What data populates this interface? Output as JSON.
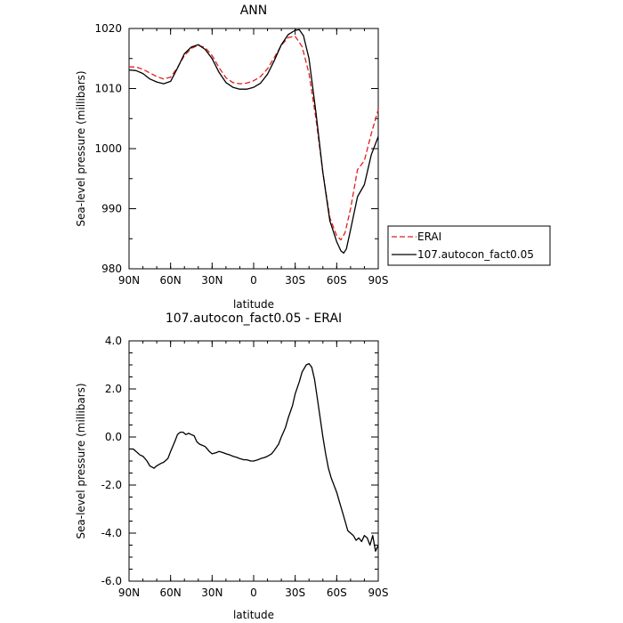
{
  "chart_data": [
    {
      "type": "line",
      "title": "ANN",
      "xlabel": "latitude",
      "ylabel": "Sea-level pressure (millibars)",
      "xlim": [
        90,
        -90
      ],
      "ylim": [
        980,
        1020
      ],
      "x_ticks": [
        90,
        60,
        30,
        0,
        -30,
        -60,
        -90
      ],
      "x_tick_labels": [
        "90N",
        "60N",
        "30N",
        "0",
        "30S",
        "60S",
        "90S"
      ],
      "y_ticks": [
        980,
        990,
        1000,
        1010,
        1020
      ],
      "y_tick_labels": [
        "980",
        "990",
        "1000",
        "1010",
        "1020"
      ],
      "legend_position": "right",
      "series": [
        {
          "name": "ERAI",
          "color": "#e0201b",
          "dash": "dashed",
          "x": [
            90,
            85,
            80,
            75,
            70,
            65,
            60,
            55,
            50,
            45,
            40,
            35,
            30,
            25,
            20,
            15,
            10,
            5,
            0,
            -5,
            -10,
            -15,
            -20,
            -25,
            -30,
            -35,
            -40,
            -45,
            -50,
            -55,
            -60,
            -63,
            -66,
            -70,
            -75,
            -80,
            -85,
            -90
          ],
          "y": [
            1013.6,
            1013.6,
            1013.2,
            1012.6,
            1012.0,
            1011.6,
            1011.9,
            1013.5,
            1015.5,
            1016.7,
            1017.2,
            1016.8,
            1015.5,
            1013.5,
            1011.8,
            1011.0,
            1010.8,
            1010.9,
            1011.3,
            1012.0,
            1013.3,
            1015.2,
            1017.2,
            1018.5,
            1018.7,
            1017.0,
            1012.5,
            1005.0,
            996.0,
            988.5,
            985.5,
            984.8,
            986.0,
            990.0,
            996.5,
            998.0,
            1002.5,
            1006.5
          ]
        },
        {
          "name": "107.autocon_fact0.05",
          "color": "#000000",
          "dash": "solid",
          "x": [
            90,
            85,
            80,
            75,
            70,
            65,
            60,
            55,
            50,
            45,
            40,
            35,
            30,
            25,
            20,
            15,
            10,
            5,
            0,
            -5,
            -10,
            -15,
            -20,
            -25,
            -30,
            -33,
            -36,
            -40,
            -45,
            -50,
            -55,
            -60,
            -63,
            -65,
            -67,
            -70,
            -75,
            -80,
            -85,
            -90
          ],
          "y": [
            1013.1,
            1013.0,
            1012.5,
            1011.6,
            1011.1,
            1010.8,
            1011.2,
            1013.4,
            1015.8,
            1016.9,
            1017.3,
            1016.5,
            1015.0,
            1012.7,
            1011.0,
            1010.2,
            1009.9,
            1009.9,
            1010.2,
            1010.9,
            1012.4,
            1014.7,
            1017.3,
            1019.0,
            1019.7,
            1019.8,
            1018.8,
            1015.0,
            1006.0,
            996.0,
            988.0,
            984.5,
            983.0,
            982.6,
            983.3,
            986.5,
            992.0,
            994.0,
            999.0,
            1002.0
          ]
        }
      ]
    },
    {
      "type": "line",
      "title": "107.autocon_fact0.05 - ERAI",
      "xlabel": "latitude",
      "ylabel": "Sea-level pressure (millibars)",
      "xlim": [
        90,
        -90
      ],
      "ylim": [
        -6.0,
        4.0
      ],
      "x_ticks": [
        90,
        60,
        30,
        0,
        -30,
        -60,
        -90
      ],
      "x_tick_labels": [
        "90N",
        "60N",
        "30N",
        "0",
        "30S",
        "60S",
        "90S"
      ],
      "y_ticks": [
        -6,
        -4,
        -2,
        0,
        2,
        4
      ],
      "y_tick_labels": [
        "-6.0",
        "-4.0",
        "-2.0",
        "0.0",
        "2.0",
        "4.0"
      ],
      "series": [
        {
          "color": "#000000",
          "dash": "solid",
          "x": [
            90,
            87,
            85,
            82,
            80,
            77,
            75,
            72,
            70,
            67,
            65,
            62,
            60,
            57,
            55,
            53,
            51,
            49,
            47,
            45,
            43,
            41,
            39,
            37,
            35,
            32,
            30,
            27,
            25,
            22,
            20,
            17,
            15,
            12,
            10,
            7,
            5,
            2,
            0,
            -3,
            -5,
            -8,
            -10,
            -13,
            -15,
            -18,
            -20,
            -23,
            -25,
            -28,
            -30,
            -33,
            -35,
            -38,
            -40,
            -42,
            -44,
            -46,
            -48,
            -50,
            -52,
            -54,
            -56,
            -58,
            -60,
            -62,
            -64,
            -66,
            -68,
            -70,
            -72,
            -74,
            -76,
            -78,
            -80,
            -82,
            -84,
            -86,
            -88,
            -90
          ],
          "y": [
            -0.5,
            -0.5,
            -0.6,
            -0.75,
            -0.8,
            -1.0,
            -1.2,
            -1.3,
            -1.2,
            -1.1,
            -1.05,
            -0.9,
            -0.6,
            -0.2,
            0.1,
            0.2,
            0.2,
            0.1,
            0.15,
            0.1,
            0.05,
            -0.2,
            -0.3,
            -0.35,
            -0.4,
            -0.6,
            -0.7,
            -0.65,
            -0.6,
            -0.65,
            -0.7,
            -0.75,
            -0.8,
            -0.85,
            -0.9,
            -0.95,
            -0.95,
            -1.0,
            -1.0,
            -0.95,
            -0.9,
            -0.85,
            -0.8,
            -0.7,
            -0.55,
            -0.3,
            0.0,
            0.4,
            0.8,
            1.3,
            1.8,
            2.3,
            2.7,
            3.0,
            3.05,
            2.9,
            2.4,
            1.6,
            0.8,
            0.0,
            -0.7,
            -1.3,
            -1.7,
            -2.0,
            -2.3,
            -2.7,
            -3.1,
            -3.5,
            -3.9,
            -4.0,
            -4.1,
            -4.3,
            -4.2,
            -4.35,
            -4.1,
            -4.2,
            -4.5,
            -4.1,
            -4.75,
            -4.5
          ]
        }
      ]
    }
  ]
}
